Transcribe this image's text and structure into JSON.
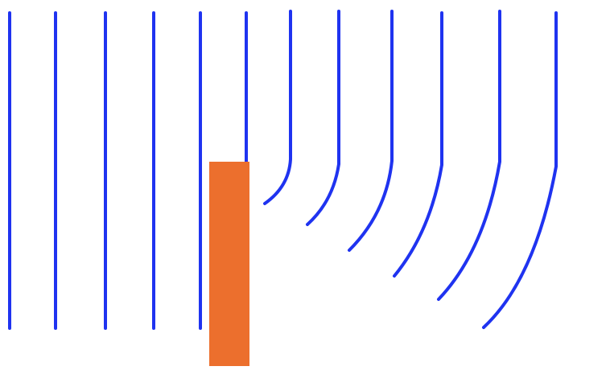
{
  "colors": {
    "background": "#ffffff",
    "wavefront": "#1f33f0",
    "barrier": "#ec6f2d"
  },
  "counts": {
    "straight_wavefronts": 5,
    "wavefronts_ending_at_barrier_top": 1,
    "diffracted_wavefronts": 6
  }
}
